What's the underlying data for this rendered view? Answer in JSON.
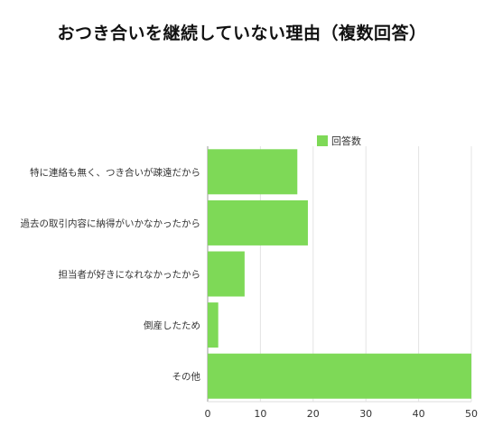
{
  "chart_data": {
    "type": "bar",
    "orientation": "horizontal",
    "title": "おつき合いを継続していない理由（複数回答）",
    "categories": [
      "特に連絡も無く、つき合いが疎遠だから",
      "過去の取引内容に納得がいかなかったから",
      "担当者が好きになれなかったから",
      "倒産したため",
      "その他"
    ],
    "series": [
      {
        "name": "回答数",
        "values": [
          17,
          19,
          7,
          2,
          50
        ],
        "color": "#7ed957"
      }
    ],
    "xlim": [
      0,
      50
    ],
    "xticks": [
      0,
      10,
      20,
      30,
      40,
      50
    ],
    "grid": true,
    "legend_position": "top"
  }
}
